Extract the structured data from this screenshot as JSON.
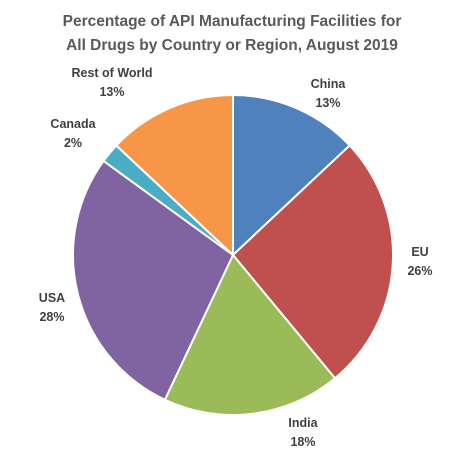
{
  "chart_data": {
    "type": "pie",
    "title_lines": [
      "Percentage of API Manufacturing Facilities for",
      "All Drugs by Country or Region, August 2019"
    ],
    "slices": [
      {
        "name": "China",
        "value": 13,
        "label": "13%",
        "color": "#4F81BD"
      },
      {
        "name": "EU",
        "value": 26,
        "label": "26%",
        "color": "#C0504D"
      },
      {
        "name": "India",
        "value": 18,
        "label": "18%",
        "color": "#9BBB59"
      },
      {
        "name": "USA",
        "value": 28,
        "label": "28%",
        "color": "#8064A2"
      },
      {
        "name": "Canada",
        "value": 2,
        "label": "2%",
        "color": "#4BACC6"
      },
      {
        "name": "Rest of World",
        "value": 13,
        "label": "13%",
        "color": "#F79646"
      }
    ],
    "start_angle_deg": 0,
    "direction": "clockwise",
    "legend": "none"
  }
}
